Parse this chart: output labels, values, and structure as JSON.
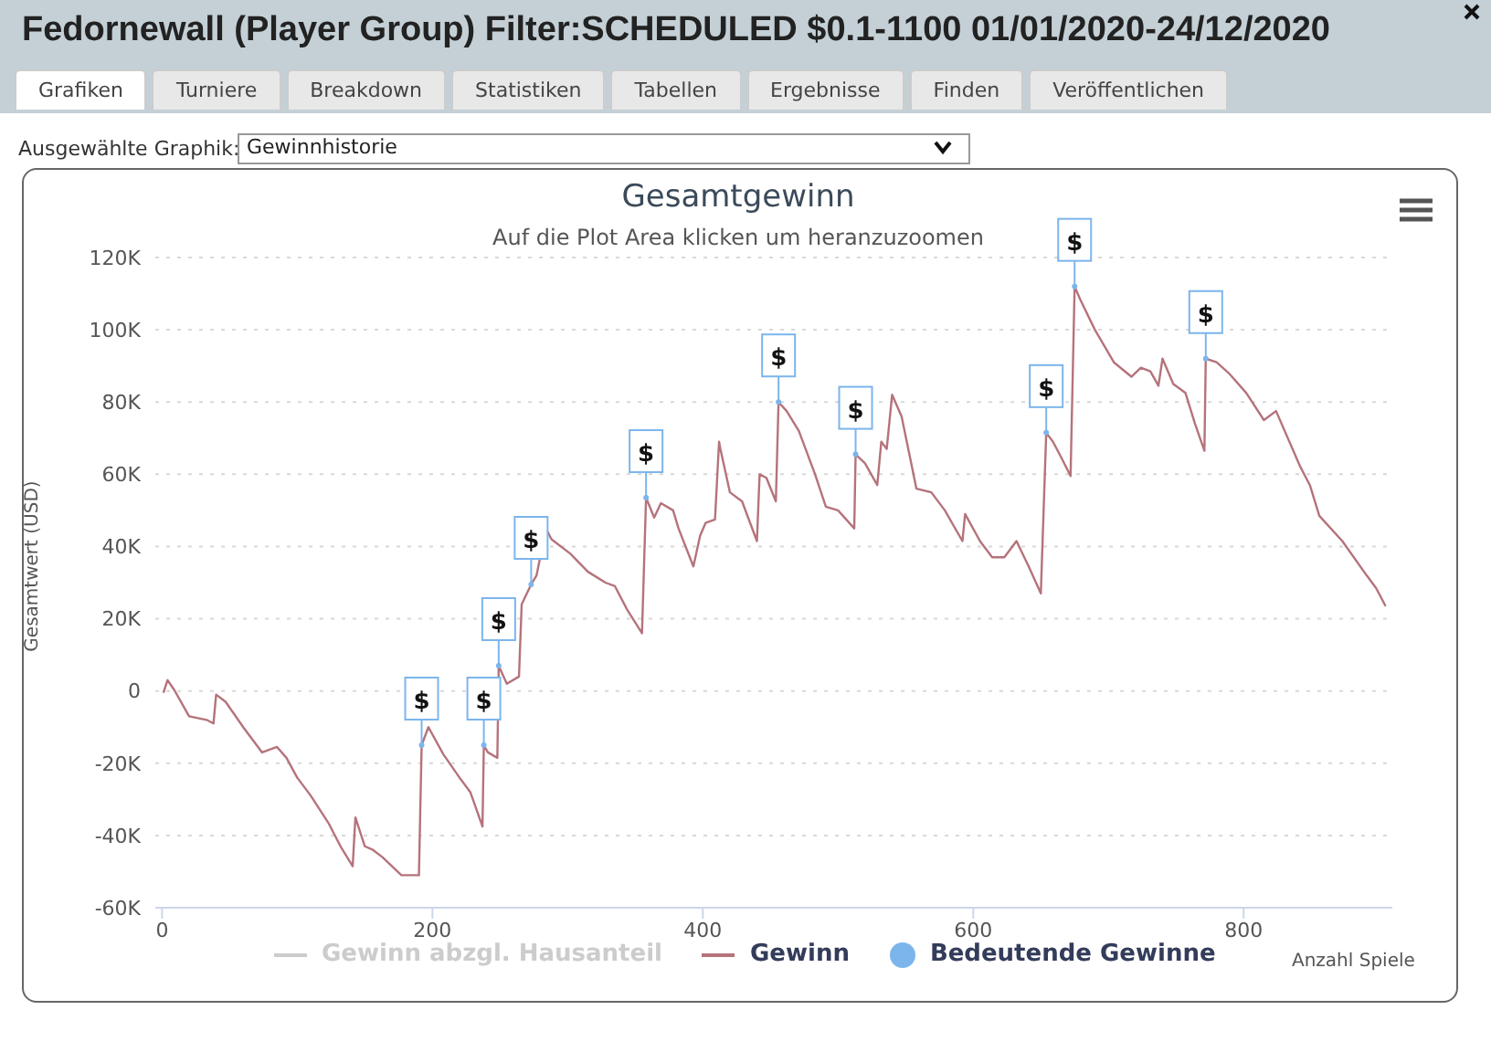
{
  "chart_data": {
    "type": "line",
    "title": "Gesamtgewinn",
    "subtitle": "Auf die Plot Area klicken um heranzuzoomen",
    "xlabel": "Anzahl Spiele",
    "ylabel": "Gesamtwert (USD)",
    "annotations": [
      "Fedornewall (Player Group) Filter:SCHEDULED $0.1-1100 01/01/2020-24/12/2020",
      "Grafiken",
      "Turniere",
      "Breakdown",
      "Statistiken",
      "Tabellen",
      "Ergebnisse",
      "Finden",
      "Veröffentlichen",
      "Ausgewählte Graphik:",
      "Gewinnhistorie"
    ],
    "xlim": [
      -5,
      910
    ],
    "xticks": [
      0,
      200,
      400,
      600,
      800
    ],
    "ylim": [
      -60000,
      120000
    ],
    "yticks": [
      {
        "value": -60000,
        "label": "-60K"
      },
      {
        "value": -40000,
        "label": "-40K"
      },
      {
        "value": -20000,
        "label": "-20K"
      },
      {
        "value": 0,
        "label": "0"
      },
      {
        "value": 20000,
        "label": "20K"
      },
      {
        "value": 40000,
        "label": "40K"
      },
      {
        "value": 60000,
        "label": "60K"
      },
      {
        "value": 80000,
        "label": "80K"
      },
      {
        "value": 100000,
        "label": "100K"
      },
      {
        "value": 120000,
        "label": "120K"
      }
    ],
    "grid": "y",
    "legend": "bottom",
    "line_style": "solid",
    "series": [
      {
        "name": "Gewinn abzgl. Hausanteil",
        "color": "#cccccc"
      },
      {
        "name": "Gewinn",
        "color": "#b5737b",
        "x": [
          1,
          4,
          9,
          20,
          33,
          38,
          40,
          47,
          60,
          74,
          85,
          92,
          100,
          110,
          123,
          132,
          141,
          143,
          150,
          156,
          163,
          177,
          190,
          192,
          197,
          208,
          221,
          228,
          237,
          238,
          241,
          248,
          249,
          255,
          264,
          266,
          273,
          277,
          284,
          288,
          302,
          315,
          328,
          335,
          344,
          355,
          358,
          364,
          369,
          378,
          382,
          393,
          398,
          402,
          409,
          412,
          413,
          420,
          429,
          440,
          442,
          447,
          454,
          456,
          462,
          471,
          483,
          491,
          500,
          512,
          513,
          520,
          529,
          532,
          536,
          540,
          547,
          558,
          569,
          579,
          592,
          594,
          605,
          614,
          623,
          632,
          641,
          650,
          654,
          659,
          666,
          672,
          675,
          679,
          690,
          704,
          717,
          724,
          731,
          737,
          740,
          748,
          757,
          764,
          771,
          772,
          780,
          789,
          802,
          815,
          824,
          842,
          849,
          856,
          873,
          891,
          898,
          905
        ],
        "values": [
          -500,
          3000,
          300,
          -7000,
          -8000,
          -9000,
          -1000,
          -3000,
          -10000,
          -17000,
          -15500,
          -18500,
          -24000,
          -29000,
          -36500,
          -43000,
          -48500,
          -35000,
          -43000,
          -44000,
          -46000,
          -51000,
          -51000,
          -15000,
          -10000,
          -17500,
          -24500,
          -28000,
          -37500,
          -15000,
          -17000,
          -18500,
          7000,
          2000,
          4000,
          24000,
          29500,
          32000,
          45000,
          42000,
          38000,
          33000,
          30000,
          29000,
          22500,
          16000,
          53500,
          48000,
          52000,
          50000,
          45000,
          34500,
          43000,
          46500,
          47500,
          69000,
          67000,
          55000,
          52500,
          41500,
          60000,
          59000,
          52500,
          80000,
          77500,
          72000,
          60000,
          51000,
          50000,
          45000,
          65500,
          63000,
          57000,
          69000,
          67000,
          82000,
          76000,
          56000,
          55000,
          50000,
          41500,
          49000,
          41500,
          37000,
          37000,
          41500,
          34500,
          27000,
          71500,
          69000,
          64000,
          59500,
          112000,
          108500,
          100000,
          91000,
          87000,
          89500,
          88500,
          84500,
          92000,
          85000,
          82500,
          74000,
          66500,
          92000,
          91000,
          88000,
          82500,
          75000,
          77500,
          62000,
          57000,
          48500,
          41500,
          32000,
          28500,
          23500
        ]
      },
      {
        "name": "Bedeutende Gewinne",
        "type": "scatter",
        "color": "#7cb5ec",
        "x": [
          192,
          238,
          249,
          273,
          358,
          456,
          513,
          654,
          675,
          772
        ],
        "values": [
          -15000,
          -15000,
          7000,
          29500,
          53500,
          80000,
          65500,
          71500,
          112000,
          92000
        ],
        "value_labels": [
          "$",
          "$",
          "$",
          "$",
          "$",
          "$",
          "$",
          "$",
          "$",
          "$"
        ]
      }
    ]
  }
}
